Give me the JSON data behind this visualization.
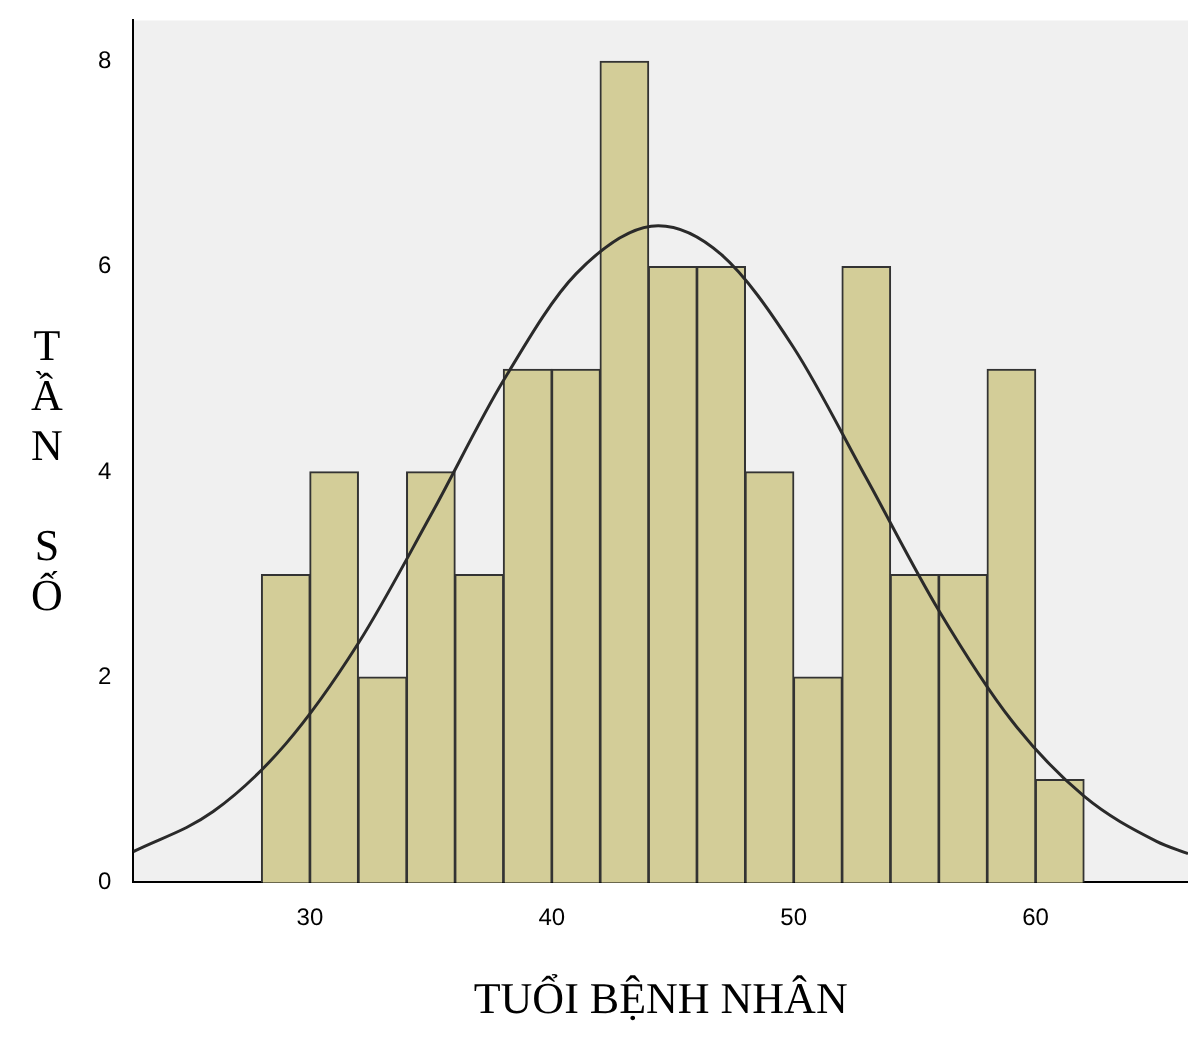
{
  "chart_data": {
    "type": "histogram",
    "xlabel": "TUỔI BỆNH NHÂN",
    "ylabel": "TẦN SỐ",
    "series": [
      {
        "color": "#d3cd98",
        "bins": [
          28,
          30,
          32,
          34,
          36,
          38,
          40,
          42,
          44,
          46,
          48,
          50,
          52,
          54,
          56,
          58,
          60,
          62
        ],
        "values": [
          3,
          4,
          2,
          4,
          3,
          5,
          5,
          8,
          6,
          6,
          4,
          2,
          6,
          3,
          3,
          5,
          1
        ]
      },
      {
        "type": "line",
        "color": "#2a2a2a",
        "x": [
          22.7,
          26,
          29,
          32,
          35,
          38,
          41,
          44.4,
          47,
          50,
          53,
          56,
          59,
          62,
          65,
          66.3
        ],
        "values": [
          0.3,
          0.69,
          1.35,
          2.33,
          3.58,
          4.89,
          5.93,
          6.4,
          6.12,
          5.21,
          3.94,
          2.65,
          1.58,
          0.84,
          0.4,
          0.28
        ]
      }
    ],
    "xlim": [
      22.7,
      66.3
    ],
    "xticks": [
      30,
      40,
      50,
      60
    ],
    "ylim": [
      0,
      8.4
    ],
    "yticks": [
      0,
      2,
      4,
      6,
      8
    ],
    "grid": false,
    "legend": false,
    "marker": "none",
    "line_style": "solid"
  }
}
